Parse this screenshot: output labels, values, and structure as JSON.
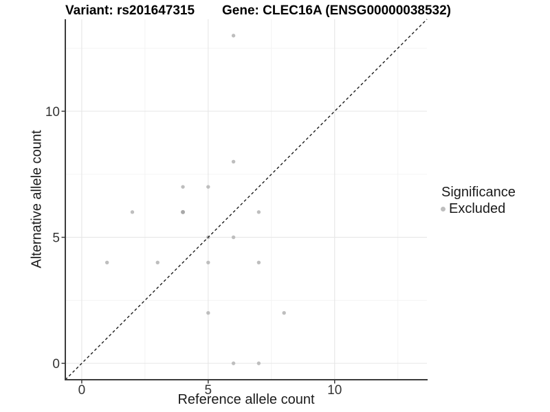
{
  "chart_data": {
    "type": "scatter",
    "title_left": "Variant: rs201647315",
    "title_right": "Gene: CLEC16A (ENSG00000038532)",
    "xlabel": "Reference allele count",
    "ylabel": "Alternative allele count",
    "xlim": [
      -0.65,
      13.65
    ],
    "ylim": [
      -0.65,
      13.65
    ],
    "x_ticks": [
      0,
      5,
      10
    ],
    "y_ticks": [
      0,
      5,
      10
    ],
    "x_minor_ticks": [
      2.5,
      7.5,
      12.5
    ],
    "y_minor_ticks": [
      2.5,
      7.5,
      12.5
    ],
    "grid": "major+minor on white background",
    "identity_line": {
      "style": "dashed",
      "slope": 1,
      "intercept": 0
    },
    "legend": {
      "title": "Significance",
      "position": "right",
      "entries": [
        {
          "label": "Excluded",
          "color": "#bebebe"
        }
      ]
    },
    "series": [
      {
        "name": "Excluded",
        "color": "#bebebe",
        "points": [
          {
            "x": 1,
            "y": 4
          },
          {
            "x": 2,
            "y": 6
          },
          {
            "x": 3,
            "y": 4
          },
          {
            "x": 4,
            "y": 6,
            "overlap": true
          },
          {
            "x": 4,
            "y": 7
          },
          {
            "x": 5,
            "y": 2
          },
          {
            "x": 5,
            "y": 4
          },
          {
            "x": 5,
            "y": 5
          },
          {
            "x": 5,
            "y": 7
          },
          {
            "x": 6,
            "y": 0
          },
          {
            "x": 6,
            "y": 5
          },
          {
            "x": 6,
            "y": 8
          },
          {
            "x": 6,
            "y": 13
          },
          {
            "x": 7,
            "y": 0
          },
          {
            "x": 7,
            "y": 4
          },
          {
            "x": 7,
            "y": 6
          },
          {
            "x": 8,
            "y": 2
          }
        ]
      }
    ],
    "colors": {
      "point": "#bebebe",
      "point_overlap": "#a8a8a8",
      "grid_major": "#e6e6e6",
      "grid_minor": "#f2f2f2",
      "axis_line": "#3a3a3a",
      "identity_line": "#1a1a1a",
      "tick_text": "#333333",
      "title_text": "#000000"
    }
  }
}
